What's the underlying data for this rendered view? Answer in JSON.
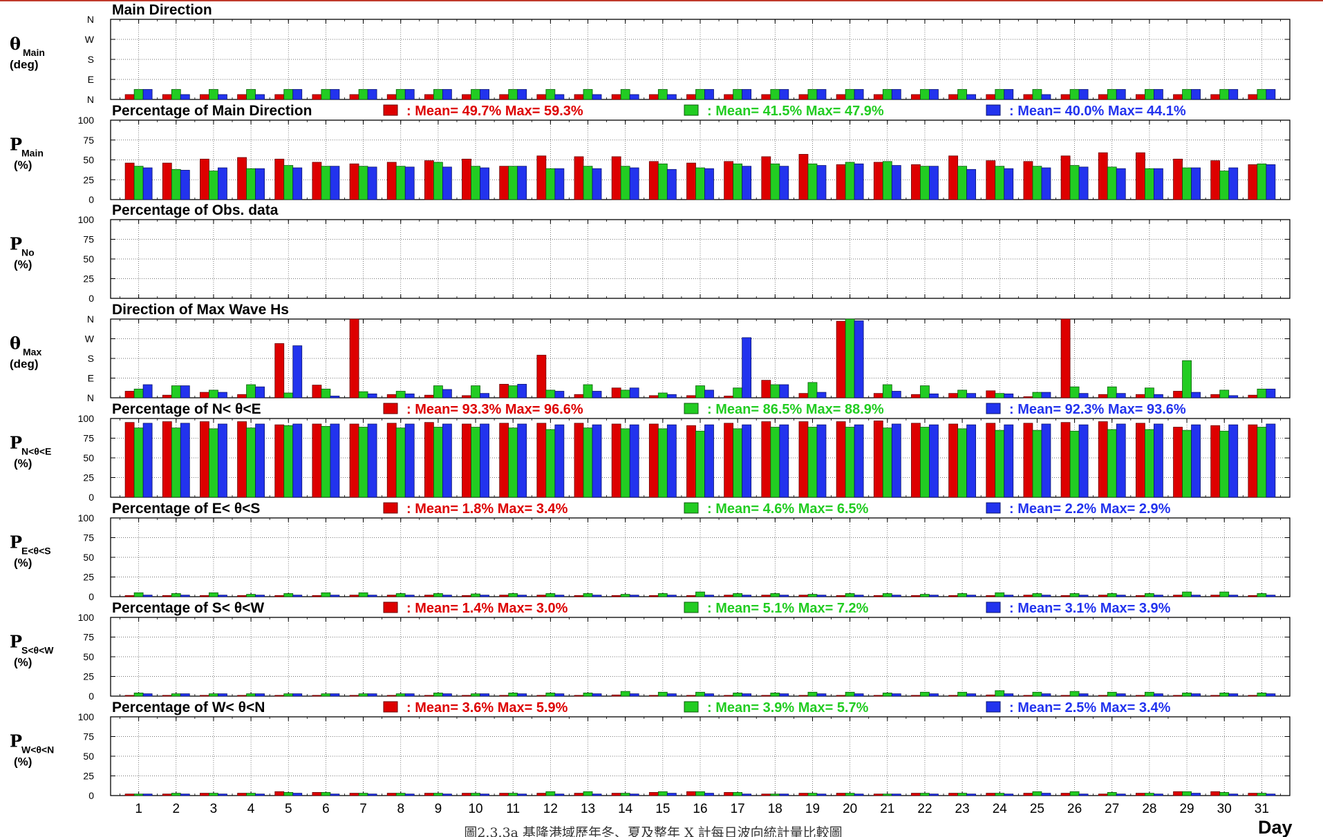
{
  "colors": {
    "red": "#dd0000",
    "green": "#22cc22",
    "blue": "#2233ee"
  },
  "x_axis": {
    "title": "Day",
    "ticks": [
      "1",
      "2",
      "3",
      "4",
      "5",
      "6",
      "7",
      "8",
      "9",
      "10",
      "11",
      "12",
      "13",
      "14",
      "15",
      "16",
      "17",
      "18",
      "19",
      "20",
      "21",
      "22",
      "23",
      "24",
      "25",
      "26",
      "27",
      "28",
      "29",
      "30",
      "31"
    ]
  },
  "caption": "圖2.3.3a 基隆港域歷年冬、夏及整年 X 計每日波向統計量比較圖",
  "chart_data": [
    {
      "id": "theta_main",
      "type": "bar",
      "title": "Main Direction",
      "ylabel": {
        "main": "θ",
        "sub": "Main",
        "unit": "(deg)"
      },
      "yticks": [
        "N",
        "E",
        "S",
        "W",
        "N"
      ],
      "ylim": [
        0,
        360
      ],
      "legend": [],
      "series": [
        {
          "values": [
            22,
            22,
            22,
            22,
            22,
            22,
            22,
            22,
            22,
            22,
            22,
            22,
            22,
            22,
            22,
            22,
            22,
            22,
            22,
            22,
            22,
            22,
            22,
            22,
            22,
            22,
            22,
            22,
            22,
            22,
            22
          ]
        },
        {
          "values": [
            45,
            45,
            45,
            45,
            45,
            45,
            45,
            45,
            45,
            45,
            45,
            45,
            45,
            45,
            45,
            45,
            45,
            45,
            45,
            45,
            45,
            45,
            45,
            45,
            45,
            45,
            45,
            45,
            45,
            45,
            45
          ]
        },
        {
          "values": [
            45,
            22,
            22,
            22,
            45,
            45,
            45,
            45,
            45,
            45,
            45,
            22,
            22,
            22,
            22,
            45,
            45,
            45,
            45,
            45,
            45,
            45,
            22,
            45,
            22,
            45,
            45,
            45,
            45,
            45,
            45
          ]
        }
      ]
    },
    {
      "id": "p_main",
      "type": "bar",
      "title": "Percentage of Main Direction",
      "ylabel": {
        "main": "P",
        "sub": "Main",
        "unit": "(%)"
      },
      "yticks": [
        "0",
        "25",
        "50",
        "75",
        "100"
      ],
      "ylim": [
        0,
        100
      ],
      "legend": [
        {
          "text": ": Mean= 49.7% Max= 59.3%"
        },
        {
          "text": ": Mean= 41.5% Max= 47.9%"
        },
        {
          "text": ": Mean= 40.0% Max= 44.1%"
        }
      ],
      "series": [
        {
          "values": [
            46,
            46,
            51,
            53,
            51,
            47,
            45,
            47,
            49,
            51,
            42,
            55,
            54,
            54,
            48,
            46,
            48,
            54,
            57,
            44,
            47,
            44,
            55,
            49,
            48,
            55,
            59,
            59,
            51,
            49,
            44
          ]
        },
        {
          "values": [
            42,
            38,
            36,
            39,
            43,
            42,
            42,
            42,
            47,
            42,
            42,
            39,
            42,
            42,
            45,
            40,
            45,
            45,
            45,
            47,
            48,
            42,
            42,
            42,
            42,
            43,
            41,
            39,
            40,
            36,
            45
          ]
        },
        {
          "values": [
            40,
            37,
            40,
            39,
            40,
            42,
            41,
            41,
            41,
            40,
            42,
            39,
            39,
            40,
            38,
            39,
            42,
            42,
            43,
            45,
            43,
            42,
            38,
            39,
            40,
            41,
            39,
            39,
            40,
            40,
            44
          ]
        }
      ]
    },
    {
      "id": "p_no",
      "type": "bar",
      "title": "Percentage of Obs. data",
      "ylabel": {
        "main": "P",
        "sub": "No",
        "unit": "(%)"
      },
      "yticks": [
        "0",
        "25",
        "50",
        "75",
        "100"
      ],
      "ylim": [
        0,
        100
      ],
      "legend": [],
      "series": []
    },
    {
      "id": "theta_max",
      "type": "bar",
      "title": "Direction of Max Wave Hs",
      "ylabel": {
        "main": "θ",
        "sub": "Max",
        "unit": "(deg)"
      },
      "yticks": [
        "N",
        "E",
        "S",
        "W",
        "N"
      ],
      "ylim": [
        0,
        360
      ],
      "legend": [],
      "series": [
        {
          "values": [
            30,
            12,
            25,
            15,
            248,
            58,
            360,
            15,
            12,
            10,
            62,
            195,
            15,
            45,
            10,
            10,
            8,
            80,
            20,
            350,
            20,
            15,
            20,
            32,
            5,
            360,
            15,
            15,
            30,
            15,
            12
          ]
        },
        {
          "values": [
            40,
            55,
            35,
            60,
            22,
            40,
            28,
            30,
            55,
            55,
            55,
            35,
            60,
            35,
            22,
            55,
            45,
            60,
            70,
            360,
            60,
            55,
            35,
            20,
            25,
            50,
            50,
            45,
            170,
            35,
            40
          ]
        },
        {
          "values": [
            60,
            55,
            25,
            50,
            238,
            8,
            18,
            18,
            38,
            20,
            62,
            30,
            30,
            45,
            15,
            35,
            275,
            60,
            25,
            352,
            30,
            18,
            20,
            18,
            25,
            20,
            20,
            15,
            25,
            10,
            40
          ]
        }
      ]
    },
    {
      "id": "p_ne",
      "type": "bar",
      "title": "Percentage of N< θ<E",
      "ylabel": {
        "main": "P",
        "sub": "N<θ<E",
        "unit": "(%)"
      },
      "yticks": [
        "0",
        "25",
        "50",
        "75",
        "100"
      ],
      "ylim": [
        0,
        100
      ],
      "legend": [
        {
          "text": ": Mean= 93.3% Max= 96.6%"
        },
        {
          "text": ": Mean= 86.5% Max= 88.9%"
        },
        {
          "text": ": Mean= 92.3% Max= 93.6%"
        }
      ],
      "series": [
        {
          "values": [
            95,
            96,
            96,
            96,
            92,
            93,
            93,
            94,
            95,
            93,
            94,
            94,
            94,
            93,
            93,
            91,
            94,
            96,
            96,
            96,
            97,
            94,
            93,
            94,
            94,
            95,
            96,
            94,
            89,
            91,
            92
          ]
        },
        {
          "values": [
            88,
            88,
            87,
            88,
            91,
            90,
            89,
            88,
            89,
            89,
            88,
            86,
            88,
            87,
            87,
            84,
            87,
            89,
            89,
            89,
            88,
            89,
            87,
            85,
            85,
            84,
            86,
            86,
            85,
            84,
            89
          ]
        },
        {
          "values": [
            94,
            94,
            93,
            93,
            93,
            93,
            93,
            93,
            93,
            93,
            93,
            92,
            92,
            92,
            92,
            92,
            92,
            92,
            92,
            92,
            93,
            92,
            92,
            92,
            93,
            92,
            93,
            93,
            92,
            92,
            93
          ]
        }
      ]
    },
    {
      "id": "p_es",
      "type": "bar",
      "title": "Percentage of E< θ<S",
      "ylabel": {
        "main": "P",
        "sub": "E<θ<S",
        "unit": "(%)"
      },
      "yticks": [
        "0",
        "25",
        "50",
        "75",
        "100"
      ],
      "ylim": [
        0,
        100
      ],
      "legend": [
        {
          "text": ": Mean=  1.8% Max=  3.4%"
        },
        {
          "text": ": Mean=  4.6% Max=  6.5%"
        },
        {
          "text": ": Mean=  2.2% Max=  2.9%"
        }
      ],
      "series": [
        {
          "values": [
            1.5,
            1.5,
            1.5,
            1.5,
            1.5,
            1.5,
            2,
            2,
            2,
            1.5,
            2,
            2,
            1.5,
            1.5,
            1.5,
            1.5,
            2,
            2,
            2,
            1.5,
            1.5,
            1.5,
            1.5,
            1.5,
            2,
            1.5,
            2,
            1.5,
            2,
            2,
            1.5
          ]
        },
        {
          "values": [
            5,
            4,
            5,
            3,
            4,
            5,
            5,
            4,
            4,
            3.5,
            4,
            4,
            4,
            3,
            4,
            6,
            4,
            4,
            3,
            4,
            4,
            3,
            4,
            5,
            4,
            4,
            4,
            4,
            6,
            6,
            4
          ]
        },
        {
          "values": [
            2,
            2,
            2,
            2,
            2,
            2,
            2,
            2,
            2,
            2,
            2,
            2,
            2,
            2,
            2,
            2,
            2,
            2,
            2,
            2,
            2,
            2,
            2,
            2,
            2,
            2,
            2,
            2,
            2,
            2,
            2
          ]
        }
      ]
    },
    {
      "id": "p_sw",
      "type": "bar",
      "title": "Percentage of S< θ<W",
      "ylabel": {
        "main": "P",
        "sub": "S<θ<W",
        "unit": "(%)"
      },
      "yticks": [
        "0",
        "25",
        "50",
        "75",
        "100"
      ],
      "ylim": [
        0,
        100
      ],
      "legend": [
        {
          "text": ": Mean=  1.4% Max=  3.0%"
        },
        {
          "text": ": Mean=  5.1% Max=  7.2%"
        },
        {
          "text": ": Mean=  3.1% Max=  3.9%"
        }
      ],
      "series": [
        {
          "values": [
            1,
            1,
            1,
            1,
            1,
            1,
            1,
            1,
            1,
            1,
            1,
            1,
            1,
            1.5,
            1,
            1,
            1,
            1,
            1,
            1,
            1,
            1,
            1,
            1.5,
            1,
            1,
            1,
            1,
            1,
            1,
            1
          ]
        },
        {
          "values": [
            4,
            3,
            3,
            3,
            3,
            3,
            3,
            3,
            4,
            3,
            4,
            4,
            4,
            6,
            5,
            5,
            4,
            4,
            5,
            5,
            4,
            5,
            5,
            7,
            5,
            6,
            5,
            5,
            4,
            4,
            4
          ]
        },
        {
          "values": [
            3,
            3,
            3,
            3,
            3,
            3,
            3,
            3,
            3,
            3,
            3,
            3,
            3,
            3,
            3,
            3,
            3,
            3,
            3,
            3,
            3,
            3,
            3,
            3,
            3,
            3,
            3,
            3,
            3,
            3,
            3
          ]
        }
      ]
    },
    {
      "id": "p_wn",
      "type": "bar",
      "title": "Percentage of W< θ<N",
      "ylabel": {
        "main": "P",
        "sub": "W<θ<N",
        "unit": "(%)"
      },
      "yticks": [
        "0",
        "25",
        "50",
        "75",
        "100"
      ],
      "ylim": [
        0,
        100
      ],
      "legend": [
        {
          "text": ": Mean=  3.6% Max=  5.9%"
        },
        {
          "text": ": Mean=  3.9% Max=  5.7%"
        },
        {
          "text": ": Mean=  2.5% Max=  3.4%"
        }
      ],
      "series": [
        {
          "values": [
            2,
            2,
            3,
            3,
            5,
            4,
            3,
            3,
            3,
            3,
            3,
            3,
            3,
            3,
            4,
            5,
            4,
            2,
            3,
            3,
            2,
            3,
            3,
            3,
            3,
            3,
            2,
            3,
            5,
            5,
            3
          ]
        },
        {
          "values": [
            2,
            3,
            3,
            3,
            4,
            4,
            3,
            3,
            3,
            3,
            3,
            5,
            5,
            3,
            5,
            5,
            4,
            2,
            3,
            3,
            2,
            3,
            3,
            3,
            5,
            5,
            4,
            3,
            5,
            4,
            3
          ]
        },
        {
          "values": [
            2,
            2,
            2,
            2,
            3,
            2,
            2,
            2,
            2,
            2,
            2,
            2,
            2,
            2,
            3,
            3,
            2,
            2,
            2,
            2,
            2,
            2,
            2,
            2,
            3,
            2,
            2,
            2,
            3,
            2,
            2
          ]
        }
      ]
    }
  ]
}
